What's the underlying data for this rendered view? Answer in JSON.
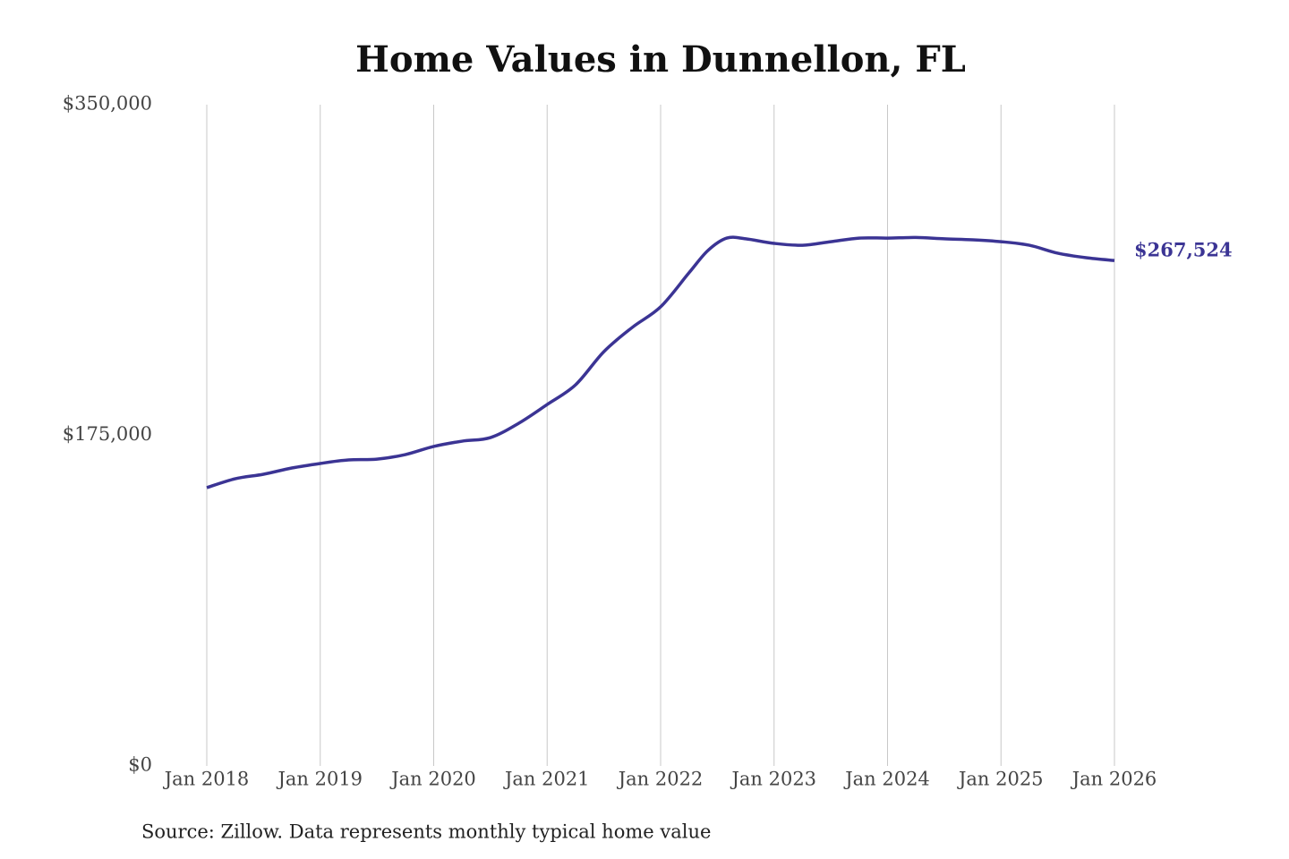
{
  "chart_data": {
    "type": "line",
    "title": "Home Values in Dunnellon, FL",
    "source": "Source: Zillow. Data represents monthly typical home value",
    "x": [
      "2018-01",
      "2018-04",
      "2018-07",
      "2018-10",
      "2019-01",
      "2019-04",
      "2019-07",
      "2019-10",
      "2020-01",
      "2020-04",
      "2020-07",
      "2020-10",
      "2021-01",
      "2021-04",
      "2021-07",
      "2021-10",
      "2022-01",
      "2022-04",
      "2022-06",
      "2022-08",
      "2022-10",
      "2023-01",
      "2023-04",
      "2023-07",
      "2023-10",
      "2024-01",
      "2024-04",
      "2024-07",
      "2024-10",
      "2025-01",
      "2025-04",
      "2025-07",
      "2025-10",
      "2026-01"
    ],
    "series": [
      {
        "name": "Typical home value",
        "color": "#3b3494",
        "values": [
          147300,
          152000,
          154400,
          157700,
          160100,
          162000,
          162400,
          164800,
          169100,
          171900,
          173800,
          181400,
          191300,
          201700,
          219300,
          232100,
          243000,
          261000,
          272800,
          279400,
          279000,
          276600,
          275600,
          277500,
          279400,
          279400,
          279700,
          279000,
          278500,
          277500,
          275600,
          271400,
          269000,
          267524
        ]
      }
    ],
    "end_label": "$267,524",
    "xlim": [
      "2018-01",
      "2026-01"
    ],
    "xticks": [
      {
        "value": "2018-01",
        "label": "Jan 2018"
      },
      {
        "value": "2019-01",
        "label": "Jan 2019"
      },
      {
        "value": "2020-01",
        "label": "Jan 2020"
      },
      {
        "value": "2021-01",
        "label": "Jan 2021"
      },
      {
        "value": "2022-01",
        "label": "Jan 2022"
      },
      {
        "value": "2023-01",
        "label": "Jan 2023"
      },
      {
        "value": "2024-01",
        "label": "Jan 2024"
      },
      {
        "value": "2025-01",
        "label": "Jan 2025"
      },
      {
        "value": "2026-01",
        "label": "Jan 2026"
      }
    ],
    "ylim": [
      0,
      350000
    ],
    "yticks": [
      {
        "value": 0,
        "label": "$0"
      },
      {
        "value": 175000,
        "label": "$175,000"
      },
      {
        "value": 350000,
        "label": "$350,000"
      }
    ],
    "grid": "x"
  }
}
